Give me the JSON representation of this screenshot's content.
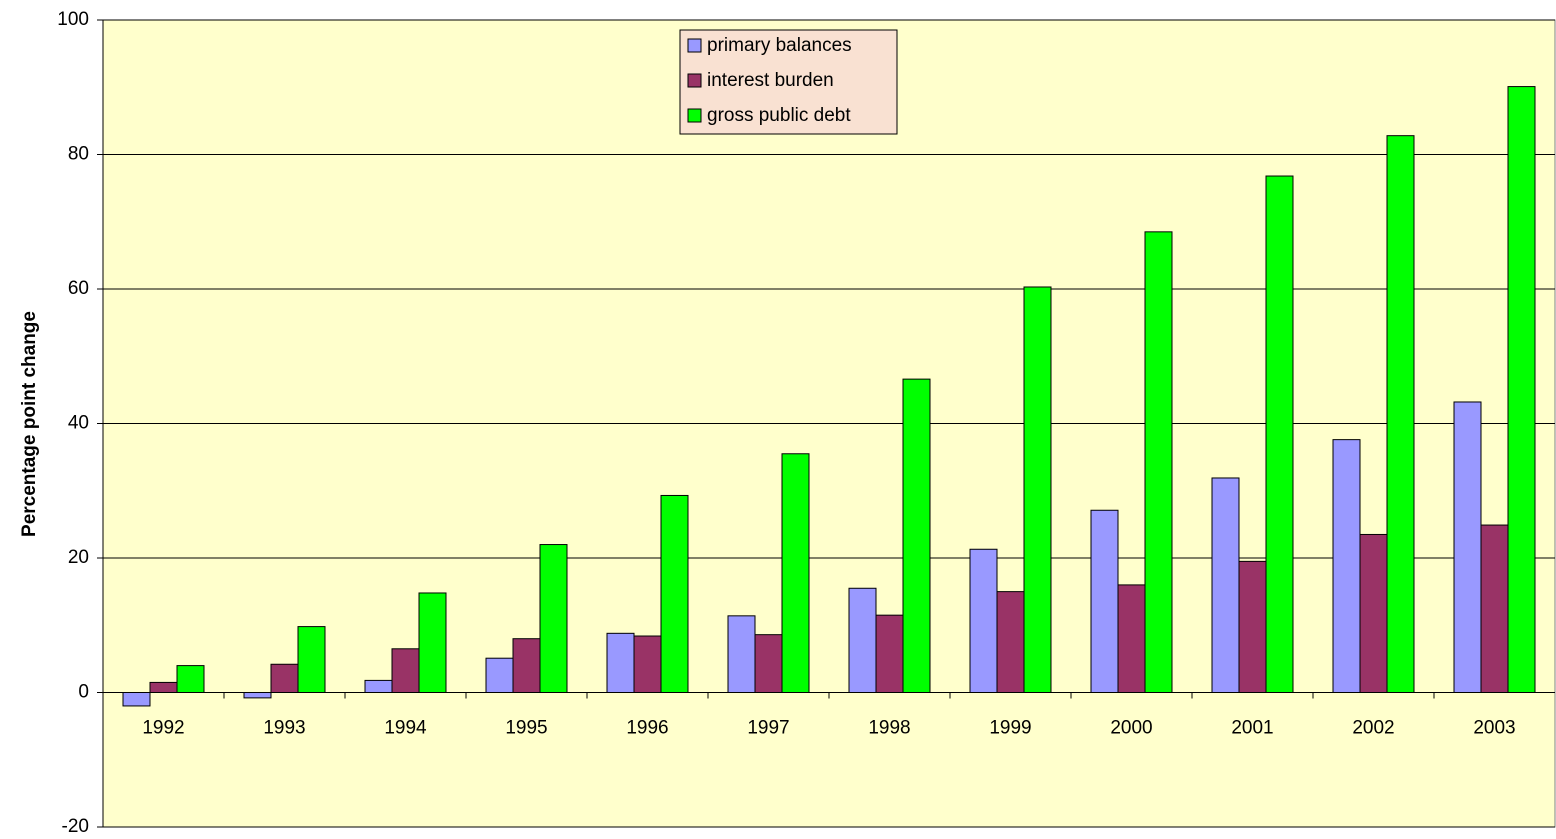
{
  "chart_data": {
    "type": "bar",
    "y_label": "Percentage point change",
    "categories": [
      "1992",
      "1993",
      "1994",
      "1995",
      "1996",
      "1997",
      "1998",
      "1999",
      "2000",
      "2001",
      "2002",
      "2003"
    ],
    "series": [
      {
        "name": "primary balances",
        "color": "#9999ff",
        "values": [
          -2,
          -0.8,
          1.8,
          5.1,
          8.8,
          11.4,
          15.5,
          21.3,
          27.1,
          31.9,
          37.6,
          43.2
        ]
      },
      {
        "name": "interest burden",
        "color": "#993366",
        "values": [
          1.5,
          4.2,
          6.5,
          8,
          8.4,
          8.6,
          11.5,
          15,
          16,
          19.5,
          23.5,
          24.9
        ]
      },
      {
        "name": "gross public debt",
        "color": "#00ff00",
        "values": [
          4,
          9.8,
          14.8,
          22,
          29.3,
          35.5,
          46.6,
          60.3,
          68.5,
          76.8,
          82.8,
          90.1
        ]
      }
    ],
    "ylim": [
      -20,
      100
    ],
    "yticks": [
      -20,
      0,
      20,
      40,
      60,
      80,
      100
    ],
    "grid": true,
    "legend": "top",
    "background": "#ffffcc"
  }
}
